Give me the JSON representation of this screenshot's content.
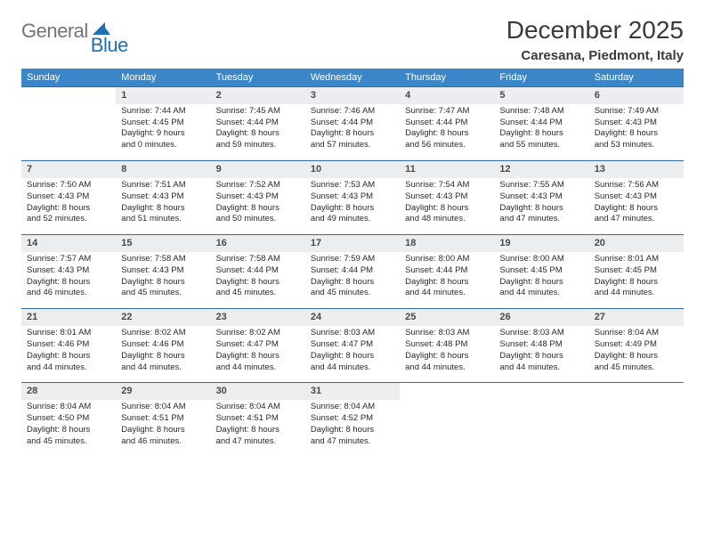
{
  "logo": {
    "general": "General",
    "blue": "Blue"
  },
  "title": "December 2025",
  "location": "Caresana, Piedmont, Italy",
  "colors": {
    "header_bg": "#3a86c8",
    "header_text": "#ffffff",
    "daynum_bg": "#ebedef",
    "row_border": "#2e6fa8",
    "body_text": "#2a2a2a",
    "title_text": "#3a3a3a",
    "logo_gray": "#6f7578",
    "logo_blue": "#1e6fb8"
  },
  "fonts": {
    "title_pt": 28,
    "location_pt": 15,
    "header_pt": 11,
    "daynum_pt": 11,
    "cell_pt": 9.5
  },
  "days_of_week": [
    "Sunday",
    "Monday",
    "Tuesday",
    "Wednesday",
    "Thursday",
    "Friday",
    "Saturday"
  ],
  "weeks": [
    [
      null,
      {
        "n": "1",
        "sunrise": "Sunrise: 7:44 AM",
        "sunset": "Sunset: 4:45 PM",
        "day1": "Daylight: 9 hours",
        "day2": "and 0 minutes."
      },
      {
        "n": "2",
        "sunrise": "Sunrise: 7:45 AM",
        "sunset": "Sunset: 4:44 PM",
        "day1": "Daylight: 8 hours",
        "day2": "and 59 minutes."
      },
      {
        "n": "3",
        "sunrise": "Sunrise: 7:46 AM",
        "sunset": "Sunset: 4:44 PM",
        "day1": "Daylight: 8 hours",
        "day2": "and 57 minutes."
      },
      {
        "n": "4",
        "sunrise": "Sunrise: 7:47 AM",
        "sunset": "Sunset: 4:44 PM",
        "day1": "Daylight: 8 hours",
        "day2": "and 56 minutes."
      },
      {
        "n": "5",
        "sunrise": "Sunrise: 7:48 AM",
        "sunset": "Sunset: 4:44 PM",
        "day1": "Daylight: 8 hours",
        "day2": "and 55 minutes."
      },
      {
        "n": "6",
        "sunrise": "Sunrise: 7:49 AM",
        "sunset": "Sunset: 4:43 PM",
        "day1": "Daylight: 8 hours",
        "day2": "and 53 minutes."
      }
    ],
    [
      {
        "n": "7",
        "sunrise": "Sunrise: 7:50 AM",
        "sunset": "Sunset: 4:43 PM",
        "day1": "Daylight: 8 hours",
        "day2": "and 52 minutes."
      },
      {
        "n": "8",
        "sunrise": "Sunrise: 7:51 AM",
        "sunset": "Sunset: 4:43 PM",
        "day1": "Daylight: 8 hours",
        "day2": "and 51 minutes."
      },
      {
        "n": "9",
        "sunrise": "Sunrise: 7:52 AM",
        "sunset": "Sunset: 4:43 PM",
        "day1": "Daylight: 8 hours",
        "day2": "and 50 minutes."
      },
      {
        "n": "10",
        "sunrise": "Sunrise: 7:53 AM",
        "sunset": "Sunset: 4:43 PM",
        "day1": "Daylight: 8 hours",
        "day2": "and 49 minutes."
      },
      {
        "n": "11",
        "sunrise": "Sunrise: 7:54 AM",
        "sunset": "Sunset: 4:43 PM",
        "day1": "Daylight: 8 hours",
        "day2": "and 48 minutes."
      },
      {
        "n": "12",
        "sunrise": "Sunrise: 7:55 AM",
        "sunset": "Sunset: 4:43 PM",
        "day1": "Daylight: 8 hours",
        "day2": "and 47 minutes."
      },
      {
        "n": "13",
        "sunrise": "Sunrise: 7:56 AM",
        "sunset": "Sunset: 4:43 PM",
        "day1": "Daylight: 8 hours",
        "day2": "and 47 minutes."
      }
    ],
    [
      {
        "n": "14",
        "sunrise": "Sunrise: 7:57 AM",
        "sunset": "Sunset: 4:43 PM",
        "day1": "Daylight: 8 hours",
        "day2": "and 46 minutes."
      },
      {
        "n": "15",
        "sunrise": "Sunrise: 7:58 AM",
        "sunset": "Sunset: 4:43 PM",
        "day1": "Daylight: 8 hours",
        "day2": "and 45 minutes."
      },
      {
        "n": "16",
        "sunrise": "Sunrise: 7:58 AM",
        "sunset": "Sunset: 4:44 PM",
        "day1": "Daylight: 8 hours",
        "day2": "and 45 minutes."
      },
      {
        "n": "17",
        "sunrise": "Sunrise: 7:59 AM",
        "sunset": "Sunset: 4:44 PM",
        "day1": "Daylight: 8 hours",
        "day2": "and 45 minutes."
      },
      {
        "n": "18",
        "sunrise": "Sunrise: 8:00 AM",
        "sunset": "Sunset: 4:44 PM",
        "day1": "Daylight: 8 hours",
        "day2": "and 44 minutes."
      },
      {
        "n": "19",
        "sunrise": "Sunrise: 8:00 AM",
        "sunset": "Sunset: 4:45 PM",
        "day1": "Daylight: 8 hours",
        "day2": "and 44 minutes."
      },
      {
        "n": "20",
        "sunrise": "Sunrise: 8:01 AM",
        "sunset": "Sunset: 4:45 PM",
        "day1": "Daylight: 8 hours",
        "day2": "and 44 minutes."
      }
    ],
    [
      {
        "n": "21",
        "sunrise": "Sunrise: 8:01 AM",
        "sunset": "Sunset: 4:46 PM",
        "day1": "Daylight: 8 hours",
        "day2": "and 44 minutes."
      },
      {
        "n": "22",
        "sunrise": "Sunrise: 8:02 AM",
        "sunset": "Sunset: 4:46 PM",
        "day1": "Daylight: 8 hours",
        "day2": "and 44 minutes."
      },
      {
        "n": "23",
        "sunrise": "Sunrise: 8:02 AM",
        "sunset": "Sunset: 4:47 PM",
        "day1": "Daylight: 8 hours",
        "day2": "and 44 minutes."
      },
      {
        "n": "24",
        "sunrise": "Sunrise: 8:03 AM",
        "sunset": "Sunset: 4:47 PM",
        "day1": "Daylight: 8 hours",
        "day2": "and 44 minutes."
      },
      {
        "n": "25",
        "sunrise": "Sunrise: 8:03 AM",
        "sunset": "Sunset: 4:48 PM",
        "day1": "Daylight: 8 hours",
        "day2": "and 44 minutes."
      },
      {
        "n": "26",
        "sunrise": "Sunrise: 8:03 AM",
        "sunset": "Sunset: 4:48 PM",
        "day1": "Daylight: 8 hours",
        "day2": "and 44 minutes."
      },
      {
        "n": "27",
        "sunrise": "Sunrise: 8:04 AM",
        "sunset": "Sunset: 4:49 PM",
        "day1": "Daylight: 8 hours",
        "day2": "and 45 minutes."
      }
    ],
    [
      {
        "n": "28",
        "sunrise": "Sunrise: 8:04 AM",
        "sunset": "Sunset: 4:50 PM",
        "day1": "Daylight: 8 hours",
        "day2": "and 45 minutes."
      },
      {
        "n": "29",
        "sunrise": "Sunrise: 8:04 AM",
        "sunset": "Sunset: 4:51 PM",
        "day1": "Daylight: 8 hours",
        "day2": "and 46 minutes."
      },
      {
        "n": "30",
        "sunrise": "Sunrise: 8:04 AM",
        "sunset": "Sunset: 4:51 PM",
        "day1": "Daylight: 8 hours",
        "day2": "and 47 minutes."
      },
      {
        "n": "31",
        "sunrise": "Sunrise: 8:04 AM",
        "sunset": "Sunset: 4:52 PM",
        "day1": "Daylight: 8 hours",
        "day2": "and 47 minutes."
      },
      null,
      null,
      null
    ]
  ]
}
